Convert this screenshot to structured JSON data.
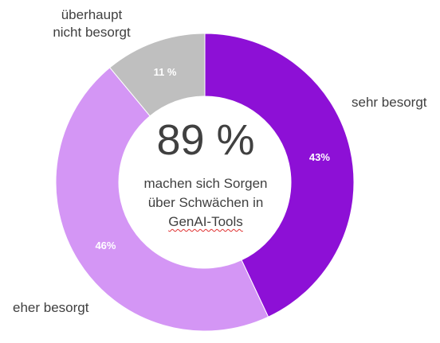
{
  "chart_data": {
    "type": "pie",
    "variant": "donut",
    "slices": [
      {
        "label": "sehr besorgt",
        "value": 43,
        "value_label": "43%",
        "color": "#8d10d6"
      },
      {
        "label": "eher besorgt",
        "value": 46,
        "value_label": "46%",
        "color": "#d496f5"
      },
      {
        "label": "überhaupt nicht besorgt",
        "value": 11,
        "value_label": "11 %",
        "color": "#bfbfbf"
      }
    ],
    "center": {
      "value": "89 %",
      "line1": "machen sich Sorgen",
      "line2": "über Schwächen in",
      "line3": "GenAI-Tools"
    },
    "labels": {
      "sehr": "sehr besorgt",
      "eher": "eher besorgt",
      "nicht_line1": "überhaupt",
      "nicht_line2": "nicht besorgt"
    }
  }
}
